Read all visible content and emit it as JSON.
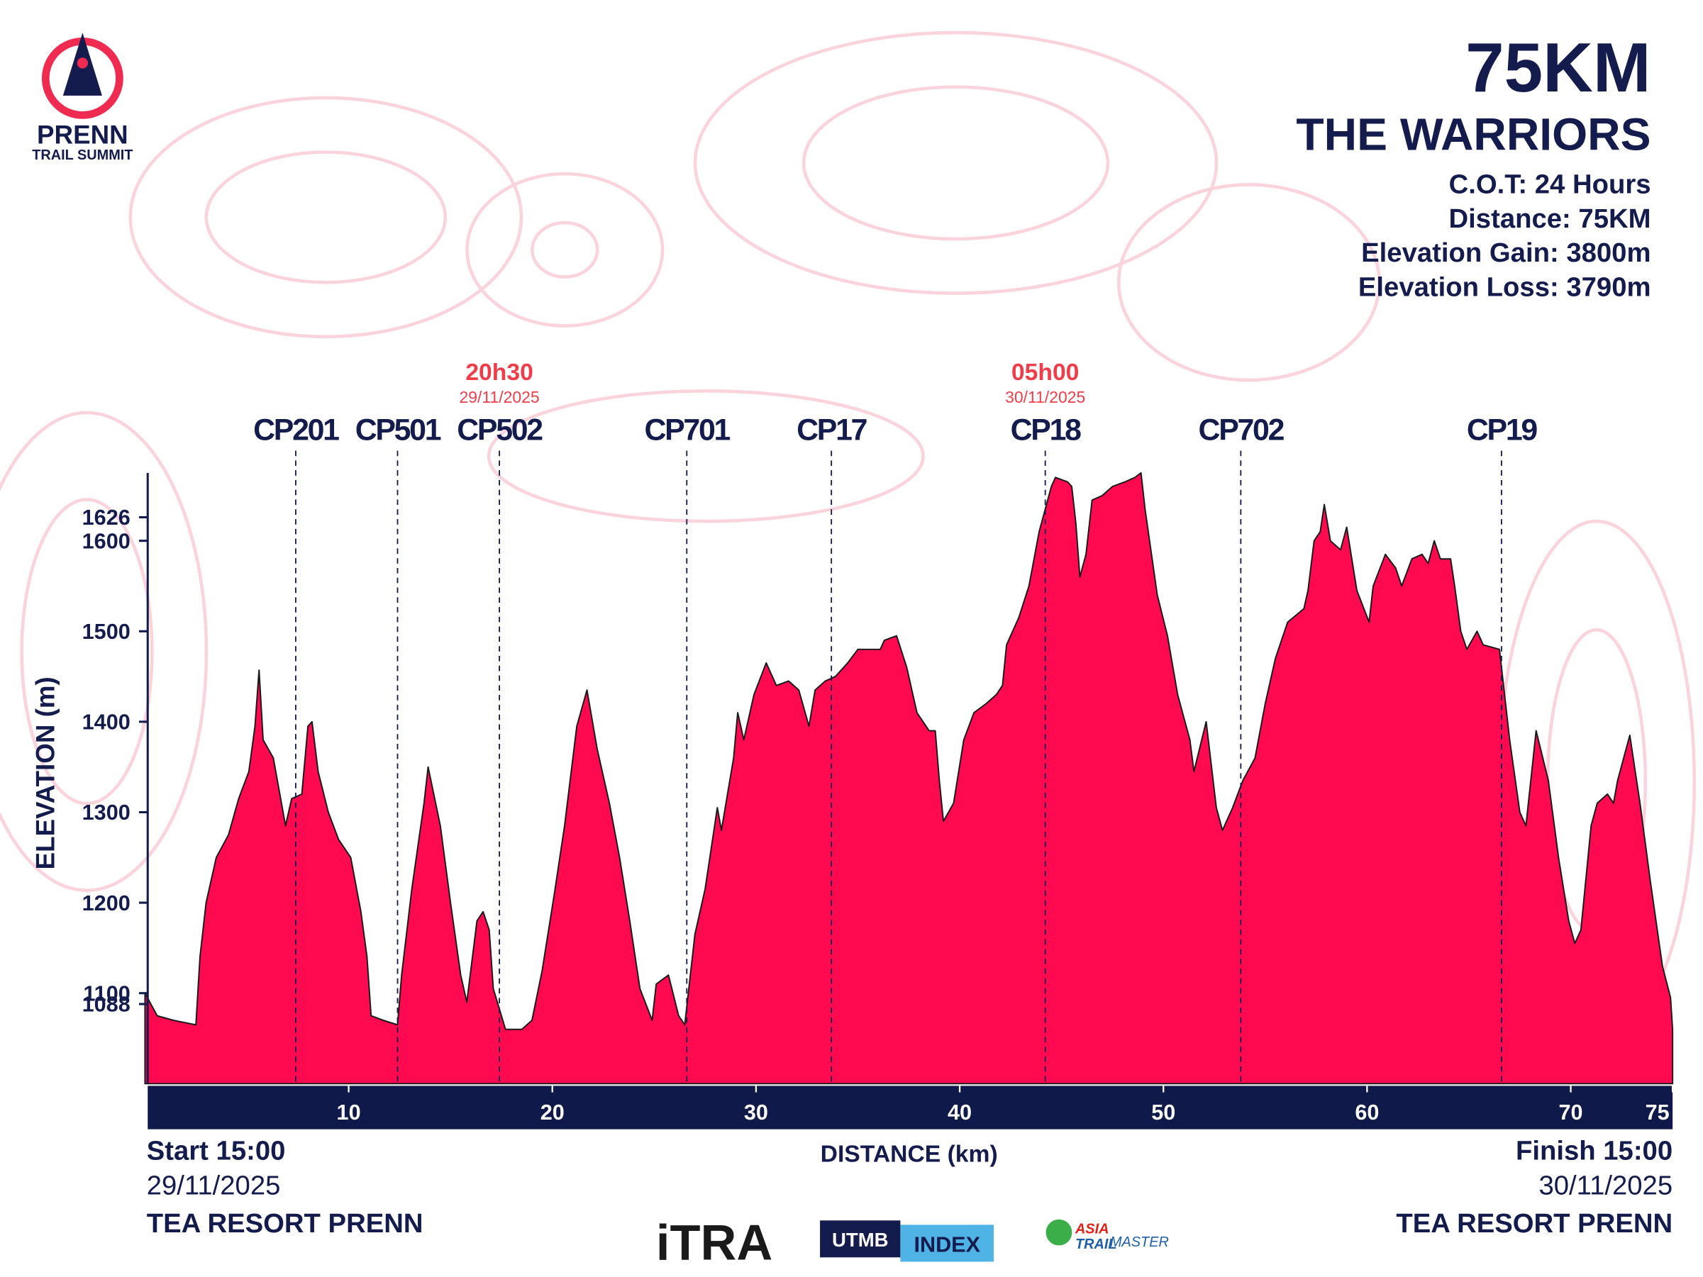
{
  "chart_data": {
    "type": "area",
    "title": "75KM",
    "subtitle": "THE WARRIORS",
    "info": [
      "C.O.T: 24 Hours",
      "Distance: 75KM",
      "Elevation Gain: 3800m",
      "Elevation Loss: 3790m"
    ],
    "xlabel": "DISTANCE (km)",
    "ylabel": "ELEVATION (m)",
    "color": "#ff0a50",
    "xlim": [
      0,
      75
    ],
    "ylim": [
      1000,
      1675
    ],
    "xticks": [
      10,
      20,
      30,
      40,
      50,
      60,
      70,
      75
    ],
    "yticks": [
      1088,
      1100,
      1200,
      1300,
      1400,
      1500,
      1600,
      1626
    ],
    "x": [
      0,
      0.6,
      1.4,
      2.5,
      2.7,
      3.0,
      3.5,
      4.1,
      4.6,
      5.1,
      5.4,
      5.6,
      5.8,
      6.3,
      6.9,
      7.2,
      7.7,
      8.0,
      8.2,
      8.5,
      9.0,
      9.5,
      10.1,
      10.6,
      10.9,
      11.1,
      11.7,
      12.4,
      12.6,
      13.1,
      13.7,
      13.9,
      14.5,
      15.0,
      15.5,
      15.8,
      16.3,
      16.6,
      16.9,
      17.1,
      17.7,
      18.5,
      19.0,
      19.5,
      20.1,
      20.6,
      21.2,
      21.7,
      22.2,
      22.8,
      23.3,
      23.8,
      24.3,
      24.9,
      25.1,
      25.7,
      26.2,
      26.5,
      27.0,
      27.5,
      28.1,
      28.3,
      28.9,
      29.1,
      29.4,
      29.9,
      30.5,
      31.0,
      31.6,
      32.1,
      32.6,
      32.9,
      33.4,
      33.9,
      34.5,
      35.0,
      35.5,
      36.1,
      36.3,
      36.9,
      37.4,
      37.9,
      38.5,
      38.8,
      39.0,
      39.2,
      39.7,
      40.2,
      40.7,
      41.3,
      41.8,
      42.1,
      42.3,
      42.9,
      43.4,
      43.9,
      44.5,
      44.7,
      45.3,
      45.5,
      45.7,
      45.9,
      46.2,
      46.5,
      47.0,
      47.5,
      48.1,
      48.6,
      48.9,
      49.1,
      49.7,
      50.2,
      50.7,
      51.3,
      51.5,
      52.1,
      52.6,
      52.9,
      53.4,
      53.9,
      54.5,
      55.0,
      55.5,
      56.1,
      56.9,
      57.1,
      57.4,
      57.7,
      57.9,
      58.2,
      58.7,
      59.0,
      59.5,
      60.1,
      60.3,
      60.9,
      61.4,
      61.7,
      62.2,
      62.7,
      63.0,
      63.3,
      63.6,
      64.1,
      64.3,
      64.6,
      64.9,
      65.4,
      65.7,
      66.5,
      66.7,
      67.0,
      67.5,
      67.8,
      68.3,
      68.9,
      69.4,
      69.9,
      70.2,
      70.5,
      71.0,
      71.3,
      71.8,
      72.1,
      72.3,
      72.9,
      73.4,
      73.9,
      74.5,
      74.9,
      75.0
    ],
    "values": [
      1100,
      1075,
      1070,
      1065,
      1140,
      1200,
      1250,
      1275,
      1315,
      1345,
      1395,
      1457,
      1380,
      1360,
      1285,
      1315,
      1320,
      1395,
      1400,
      1345,
      1300,
      1270,
      1250,
      1190,
      1140,
      1075,
      1070,
      1065,
      1120,
      1215,
      1310,
      1350,
      1285,
      1200,
      1120,
      1090,
      1180,
      1190,
      1170,
      1105,
      1060,
      1060,
      1070,
      1125,
      1210,
      1285,
      1395,
      1435,
      1370,
      1310,
      1250,
      1180,
      1105,
      1070,
      1110,
      1120,
      1075,
      1065,
      1165,
      1215,
      1305,
      1280,
      1360,
      1410,
      1380,
      1430,
      1465,
      1440,
      1445,
      1435,
      1395,
      1435,
      1445,
      1450,
      1465,
      1480,
      1480,
      1480,
      1490,
      1495,
      1460,
      1410,
      1390,
      1390,
      1335,
      1290,
      1310,
      1380,
      1410,
      1420,
      1430,
      1440,
      1485,
      1515,
      1550,
      1610,
      1660,
      1670,
      1665,
      1660,
      1620,
      1560,
      1585,
      1645,
      1650,
      1660,
      1665,
      1670,
      1675,
      1635,
      1540,
      1495,
      1430,
      1380,
      1345,
      1400,
      1305,
      1280,
      1305,
      1335,
      1360,
      1420,
      1470,
      1510,
      1525,
      1545,
      1600,
      1610,
      1640,
      1600,
      1590,
      1615,
      1545,
      1510,
      1550,
      1585,
      1570,
      1550,
      1580,
      1585,
      1575,
      1600,
      1580,
      1580,
      1550,
      1500,
      1480,
      1500,
      1485,
      1480,
      1440,
      1380,
      1300,
      1285,
      1390,
      1335,
      1250,
      1180,
      1155,
      1170,
      1285,
      1310,
      1320,
      1310,
      1335,
      1385,
      1310,
      1225,
      1130,
      1095,
      1060
    ],
    "checkpoints": [
      {
        "name": "CP201",
        "km": 7.4
      },
      {
        "name": "CP501",
        "km": 12.4
      },
      {
        "name": "CP502",
        "km": 17.4,
        "time": "20h30",
        "date": "29/11/2025"
      },
      {
        "name": "CP701",
        "km": 26.6
      },
      {
        "name": "CP17",
        "km": 33.7
      },
      {
        "name": "CP18",
        "km": 44.2,
        "time": "05h00",
        "date": "30/11/2025"
      },
      {
        "name": "CP702",
        "km": 53.8
      },
      {
        "name": "CP19",
        "km": 66.6
      }
    ],
    "start": {
      "time": "Start 15:00",
      "date": "29/11/2025",
      "place": "TEA RESORT PRENN"
    },
    "finish": {
      "time": "Finish 15:00",
      "date": "30/11/2025",
      "place": "TEA RESORT PRENN"
    }
  },
  "branding": {
    "logo": [
      "PRENN",
      "TRAIL SUMMIT"
    ],
    "sponsors": [
      "iTRA",
      "UTMB",
      "INDEX",
      "ASIA",
      "TRAIL",
      "MASTER"
    ]
  }
}
